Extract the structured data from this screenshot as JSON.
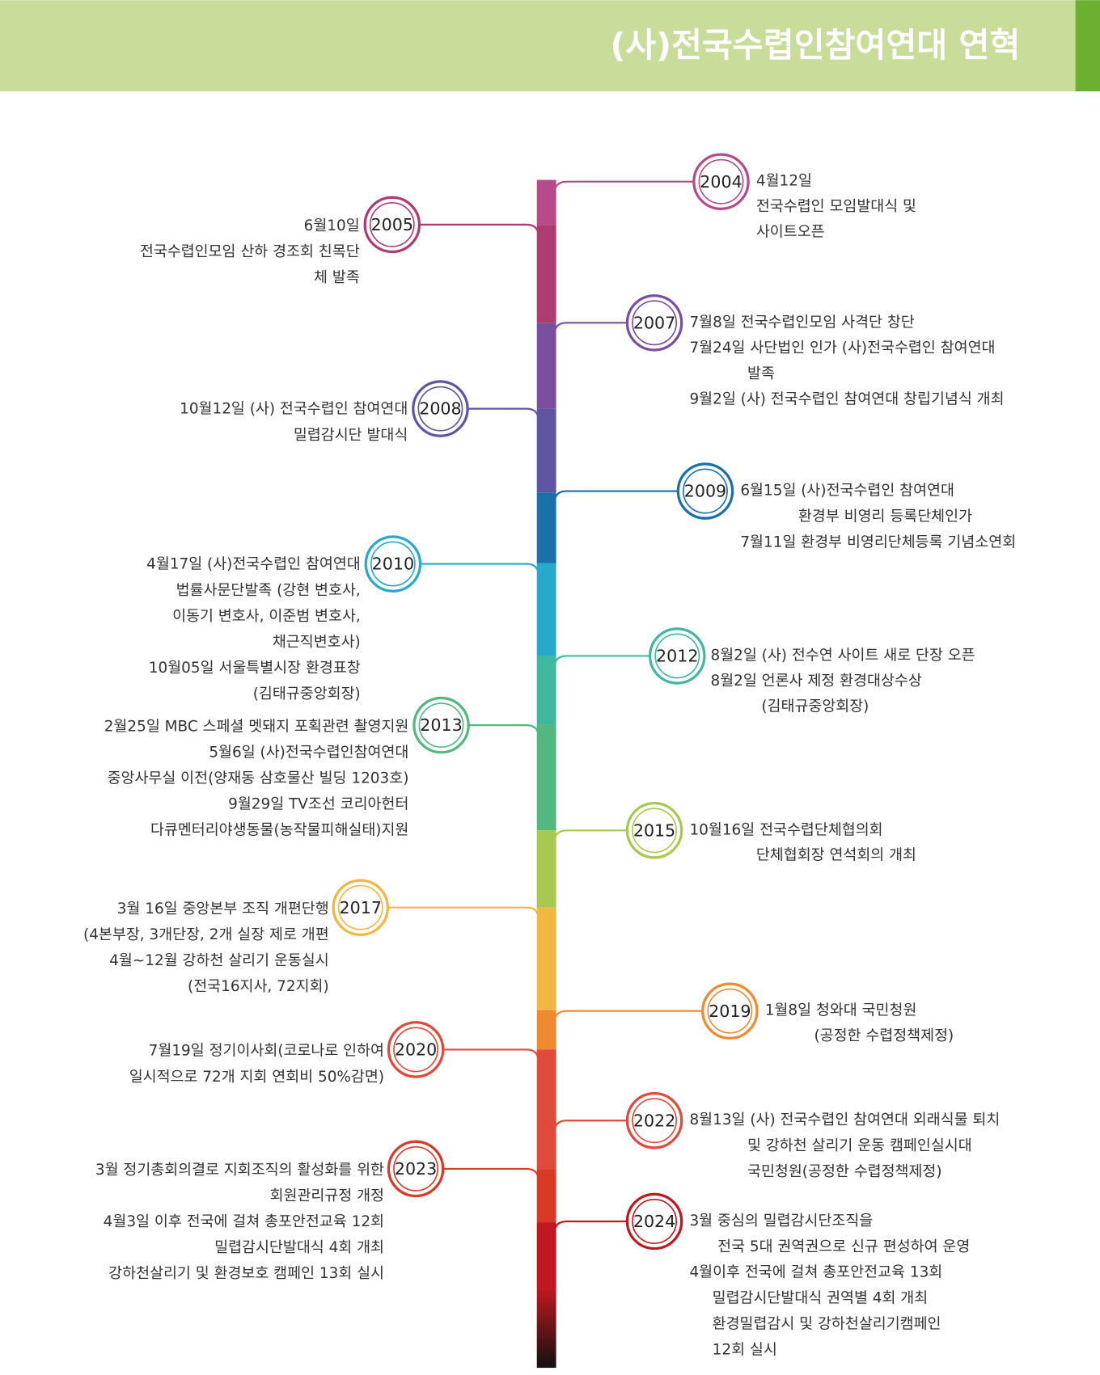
{
  "header": {
    "title": "(사)전국수렵인참여연대 연혁"
  },
  "events": [
    {
      "year": "2004",
      "lines": [
        "4월12일",
        "전국수렵인 모임발대식 및",
        "사이트오픈"
      ]
    },
    {
      "year": "2005",
      "lines": [
        "6월10일",
        "전국수렵인모임 산하 경조회 친목단",
        "체 발족"
      ]
    },
    {
      "year": "2007",
      "lines": [
        "7월8일 전국수렵인모임 사격단 창단",
        "7월24일 사단법인 인가 (사)전국수렵인 참여연대",
        "발족",
        "9월2일 (사) 전국수렵인 참여연대 창립기념식 개최"
      ]
    },
    {
      "year": "2008",
      "lines": [
        "10월12일 (사) 전국수렵인 참여연대",
        "밀렵감시단 발대식"
      ]
    },
    {
      "year": "2009",
      "lines": [
        "6월15일 (사)전국수렵인 참여연대",
        "환경부 비영리 등록단체인가",
        "7월11일 환경부 비영리단체등록 기념소연회"
      ]
    },
    {
      "year": "2010",
      "lines": [
        "4월17일 (사)전국수렵인 참여연대",
        "법률사문단발족 (강현 변호사,",
        "이동기 변호사, 이준범 변호사,",
        "채근직변호사)",
        "10월05일 서울특별시장 환경표창",
        "(김태규중앙회장)"
      ]
    },
    {
      "year": "2012",
      "lines": [
        "8월2일 (사) 전수연 사이트 새로 단장 오픈",
        "8월2일 언론사 제정 환경대상수상",
        "(김태규중앙회장)"
      ]
    },
    {
      "year": "2013",
      "lines": [
        "2월25일 MBC 스페셜 멧돼지 포획관련 촬영지원",
        "5월6일 (사)전국수렵인참여연대",
        "중앙사무실 이전(양재동 삼호물산 빌딩 1203호)",
        "9월29일 TV조선 코리아헌터",
        "다큐멘터리야생동물(농작물피해실태)지원"
      ]
    },
    {
      "year": "2015",
      "lines": [
        "10월16일 전국수렵단체협의회",
        "단체협회장 연석회의 개최"
      ]
    },
    {
      "year": "2017",
      "lines": [
        "3월 16일 중앙본부 조직 개편단행",
        "(4본부장, 3개단장, 2개 실장 제로 개편",
        "4월~12월 강하천 살리기 운동실시",
        "(전국16지사, 72지회)"
      ]
    },
    {
      "year": "2019",
      "lines": [
        "1월8일 청와대 국민청원",
        "(공정한 수렵정책제정)"
      ]
    },
    {
      "year": "2020",
      "lines": [
        "7월19일 정기이사회(코로나로 인하여",
        "일시적으로 72개 지회 연회비 50%감면)"
      ]
    },
    {
      "year": "2022",
      "lines": [
        "8월13일 (사) 전국수렵인 참여연대 외래식물 퇴치",
        "및 강하천 살리기 운동 캠페인실시대",
        "국민청원(공정한 수렵정책제정)"
      ]
    },
    {
      "year": "2023",
      "lines": [
        "3월 정기총회의결로 지회조직의 활성화를 위한",
        "회원관리규정 개정",
        "4월3일 이후 전국에 걸쳐 총포안전교육 12회",
        "밀렵감시단발대식 4회 개최",
        "강하천살리기 및 환경보호 캠페인 13회 실시"
      ]
    },
    {
      "year": "2024",
      "lines": [
        "3월 중심의 밀렵감시단조직을",
        "전국 5대 권역권으로 신규 편성하여 운영",
        "4월이후 전국에 걸쳐 총포안전교육 13회",
        "밀렵감시단발대식 권역별 4회 개최",
        "환경밀렵감시 및 강하천살리기캠페인",
        "12회 실시"
      ]
    }
  ]
}
